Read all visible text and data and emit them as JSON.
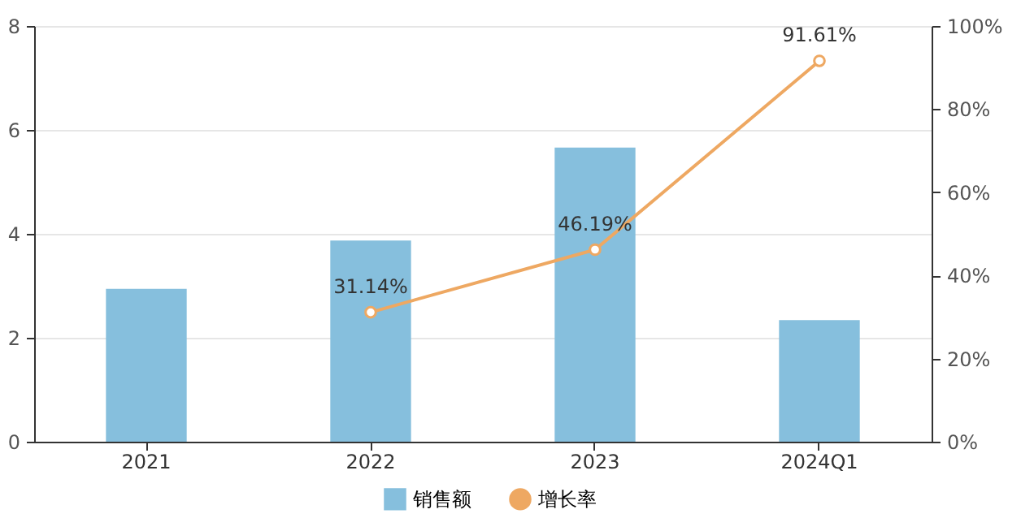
{
  "chart_data": {
    "type": "bar",
    "categories": [
      "2021",
      "2022",
      "2023",
      "2024Q1"
    ],
    "series": [
      {
        "name": "销售额",
        "color": "#86bfdd",
        "values": [
          2.94,
          3.87,
          5.66,
          2.34
        ]
      },
      {
        "name": "增长率",
        "type": "line",
        "axis": "y2",
        "color": "#eea862",
        "marker": "circle",
        "values": [
          null,
          31.14,
          46.19,
          91.61
        ],
        "value_labels": [
          null,
          "31.14%",
          "46.19%",
          "91.61%"
        ]
      }
    ],
    "ylim": [
      0,
      8
    ],
    "yticks": [
      0,
      2,
      4,
      6,
      8
    ],
    "y2lim": [
      0,
      100
    ],
    "y2ticks": [
      {
        "value": 0,
        "label": "0%"
      },
      {
        "value": 20,
        "label": "20%"
      },
      {
        "value": 40,
        "label": "40%"
      },
      {
        "value": 60,
        "label": "60%"
      },
      {
        "value": 80,
        "label": "80%"
      },
      {
        "value": 100,
        "label": "100%"
      }
    ],
    "grid": "y",
    "legend": "bottom"
  }
}
